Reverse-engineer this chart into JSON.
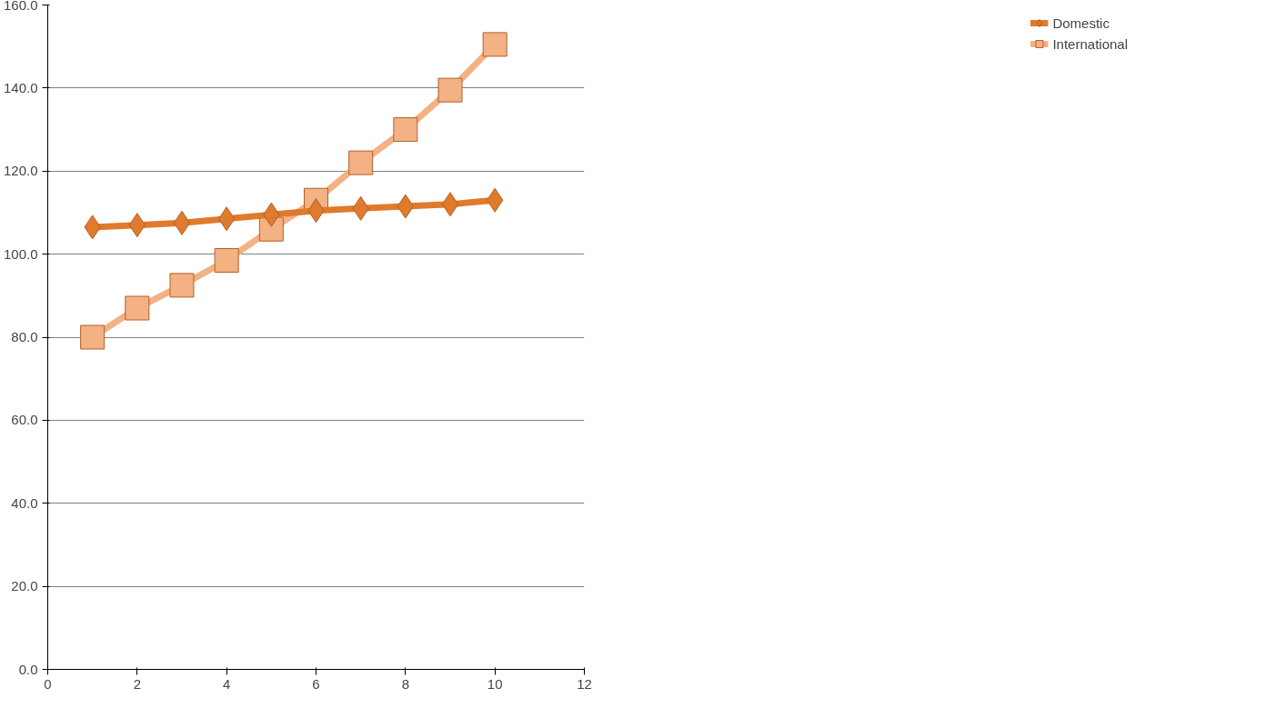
{
  "chart_data": {
    "type": "line",
    "x": [
      1,
      2,
      3,
      4,
      5,
      6,
      7,
      8,
      9,
      10
    ],
    "series": [
      {
        "name": "Domestic",
        "color": "#e07a2c",
        "marker": "diamond",
        "values": [
          106.5,
          107,
          107.5,
          108.5,
          109.5,
          110.5,
          111,
          111.5,
          112,
          113
        ]
      },
      {
        "name": "International",
        "color": "#f4b183",
        "marker": "square",
        "values": [
          80,
          87,
          92.5,
          98.5,
          106,
          113,
          122,
          130,
          139.5,
          150.5
        ]
      }
    ],
    "xlim": [
      0,
      12
    ],
    "xticks": [
      0,
      2,
      4,
      6,
      8,
      10,
      12
    ],
    "ylim": [
      0,
      160
    ],
    "yticks": [
      {
        "value": 0,
        "label": "0.0"
      },
      {
        "value": 20,
        "label": "20.0"
      },
      {
        "value": 40,
        "label": "40.0"
      },
      {
        "value": 60,
        "label": "60.0"
      },
      {
        "value": 80,
        "label": "80.0"
      },
      {
        "value": 100,
        "label": "100.0"
      },
      {
        "value": 120,
        "label": "120.0"
      },
      {
        "value": 140,
        "label": "140.0"
      },
      {
        "value": 160,
        "label": "160.0"
      }
    ],
    "grid": "y",
    "legend": "right",
    "line_style": "solid"
  }
}
